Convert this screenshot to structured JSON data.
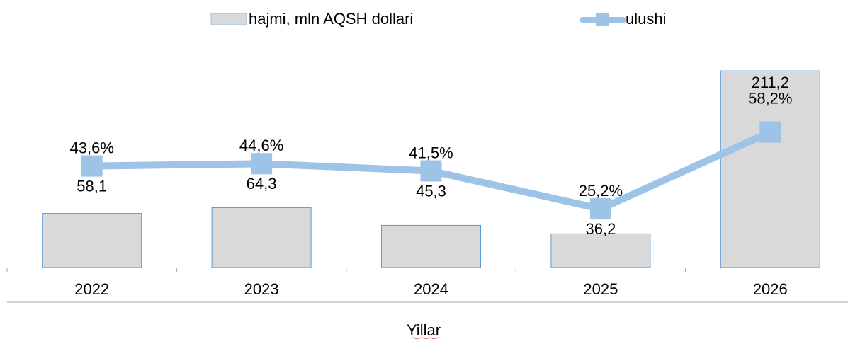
{
  "chart_data": {
    "type": "bar_line",
    "x_label": "Yillar",
    "categories": [
      "2022",
      "2023",
      "2024",
      "2025",
      "2026"
    ],
    "series": [
      {
        "name": "hajmi, mln AQSH dollari",
        "type": "bar",
        "color": "#d9d9d9",
        "values": [
          58.1,
          64.3,
          45.3,
          36.2,
          211.2
        ],
        "value_labels": [
          "58,1",
          "64,3",
          "45,3",
          "36,2",
          "211,2"
        ]
      },
      {
        "name": "ulushi",
        "type": "line",
        "axis": "y2",
        "color": "#9dc3e6",
        "values": [
          43.6,
          44.6,
          41.5,
          25.2,
          58.2
        ],
        "value_labels": [
          "43,6%",
          "44,6%",
          "41,5%",
          "25,2%",
          "58,2%"
        ]
      }
    ],
    "ylim": [
      0,
      225
    ],
    "y2lim": [
      0,
      90
    ],
    "legend": "top"
  }
}
